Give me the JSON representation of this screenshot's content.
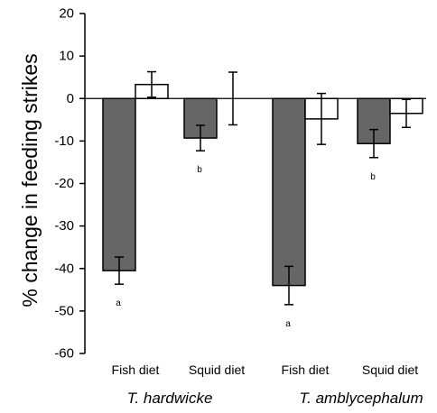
{
  "chart_data": {
    "type": "bar",
    "ylabel": "% change in feeding strikes",
    "ylim": [
      -60,
      20
    ],
    "yticks": [
      20,
      10,
      0,
      -10,
      -20,
      -30,
      -40,
      -50,
      -60
    ],
    "grid": false,
    "groups": [
      {
        "name": "T. hardwicke",
        "categories": [
          {
            "name": "Fish diet",
            "bars": [
              {
                "fill": "gray",
                "value": -40.5,
                "error": 3.2
              },
              {
                "fill": "white",
                "value": 3.3,
                "error": 3.0
              }
            ],
            "annotation": "a"
          },
          {
            "name": "Squid diet",
            "bars": [
              {
                "fill": "gray",
                "value": -9.3,
                "error": 3.0
              },
              {
                "fill": "white",
                "value": 0.0,
                "error": 6.2
              }
            ],
            "annotation": "b"
          }
        ]
      },
      {
        "name": "T. amblycephalum",
        "categories": [
          {
            "name": "Fish diet",
            "bars": [
              {
                "fill": "gray",
                "value": -44.0,
                "error": 4.5
              },
              {
                "fill": "white",
                "value": -4.8,
                "error": 6.0
              }
            ],
            "annotation": "a"
          },
          {
            "name": "Squid diet",
            "bars": [
              {
                "fill": "gray",
                "value": -10.6,
                "error": 3.3
              },
              {
                "fill": "white",
                "value": -3.5,
                "error": 3.3
              }
            ],
            "annotation": "b"
          }
        ]
      }
    ],
    "colors": {
      "gray": "#666666",
      "white": "#ffffff",
      "stroke": "#000000"
    }
  }
}
